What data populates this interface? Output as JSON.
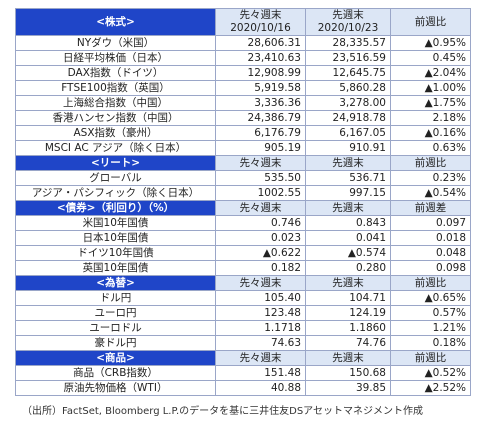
{
  "sections": [
    {
      "title": "<株式>",
      "headers": [
        [
          "先々週末",
          "2020/10/16"
        ],
        [
          "先週末",
          "2020/10/23"
        ],
        "前週比"
      ],
      "rows": [
        [
          "NYダウ（米国）",
          "28,606.31",
          "28,335.57",
          "▲0.95%"
        ],
        [
          "日経平均株価（日本）",
          "23,410.63",
          "23,516.59",
          "0.45%"
        ],
        [
          "DAX指数（ドイツ）",
          "12,908.99",
          "12,645.75",
          "▲2.04%"
        ],
        [
          "FTSE100指数（英国）",
          "5,919.58",
          "5,860.28",
          "▲1.00%"
        ],
        [
          "上海総合指数（中国）",
          "3,336.36",
          "3,278.00",
          "▲1.75%"
        ],
        [
          "香港ハンセン指数（中国）",
          "24,386.79",
          "24,918.78",
          "2.18%"
        ],
        [
          "ASX指数（豪州）",
          "6,176.79",
          "6,167.05",
          "▲0.16%"
        ],
        [
          "MSCI AC アジア（除く日本）",
          "905.19",
          "910.91",
          "0.63%"
        ]
      ]
    },
    {
      "title": "<リート>",
      "headers": [
        "先々週末",
        "先週末",
        "前週比"
      ],
      "rows": [
        [
          "グローバル",
          "535.50",
          "536.71",
          "0.23%"
        ],
        [
          "アジア・パシフィック（除く日本）",
          "1002.55",
          "997.15",
          "▲0.54%"
        ]
      ]
    },
    {
      "title": "<債券>（利回り）（%）",
      "headers": [
        "先々週末",
        "先週末",
        "前週差"
      ],
      "rows": [
        [
          "米国10年国債",
          "0.746",
          "0.843",
          "0.097"
        ],
        [
          "日本10年国債",
          "0.023",
          "0.041",
          "0.018"
        ],
        [
          "ドイツ10年国債",
          "▲0.622",
          "▲0.574",
          "0.048"
        ],
        [
          "英国10年国債",
          "0.182",
          "0.280",
          "0.098"
        ]
      ]
    },
    {
      "title": "<為替>",
      "headers": [
        "先々週末",
        "先週末",
        "前週比"
      ],
      "rows": [
        [
          "ドル円",
          "105.40",
          "104.71",
          "▲0.65%"
        ],
        [
          "ユーロ円",
          "123.48",
          "124.19",
          "0.57%"
        ],
        [
          "ユーロドル",
          "1.1718",
          "1.1860",
          "1.21%"
        ],
        [
          "豪ドル円",
          "74.63",
          "74.76",
          "0.18%"
        ]
      ]
    },
    {
      "title": "<商品>",
      "headers": [
        "先々週末",
        "先週末",
        "前週比"
      ],
      "rows": [
        [
          "商品（CRB指数）",
          "151.48",
          "150.68",
          "▲0.52%"
        ],
        [
          "原油先物価格（WTI）",
          "40.88",
          "39.85",
          "▲2.52%"
        ]
      ]
    }
  ],
  "note": "（出所）FactSet, Bloomberg L.P.のデータを基に三井住友DSアセットマネジメント作成"
}
